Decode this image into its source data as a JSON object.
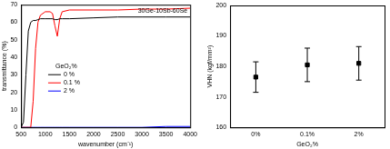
{
  "chart_data": [
    {
      "type": "line",
      "title": "30Ge-10Sb-60Se",
      "x_label": "wavenumber (cm⁻¹)",
      "y_label": "transmittance (%)",
      "legend_title": "GeO₂%",
      "legend": "left",
      "x": [
        500,
        550,
        600,
        650,
        700,
        750,
        800,
        850,
        900,
        1000,
        1100,
        1150,
        1200,
        1250,
        1300,
        1350,
        1500,
        2000,
        2500,
        3000,
        3500,
        4000
      ],
      "series": [
        {
          "name": "0 %",
          "color": "#000000",
          "values": [
            0,
            3,
            30,
            55,
            60,
            61,
            61,
            61.5,
            62,
            62,
            62,
            62,
            61.5,
            61.5,
            62,
            62,
            62,
            62.5,
            63,
            63,
            63,
            63
          ]
        },
        {
          "name": "0.1 %",
          "color": "#ff0000",
          "values": [
            0,
            0,
            0,
            0,
            0,
            15,
            45,
            60,
            64,
            66,
            66,
            65,
            58,
            52,
            62,
            66,
            67,
            67,
            67,
            67.5,
            67.5,
            68
          ]
        },
        {
          "name": "2 %",
          "color": "#0000ff",
          "values": [
            0,
            0,
            0,
            0,
            0,
            0,
            0,
            0,
            0,
            0,
            0,
            0,
            0,
            0,
            0,
            0,
            0,
            0,
            0,
            0,
            0.5,
            0.5
          ]
        }
      ],
      "xlim": [
        500,
        4000
      ],
      "xticks": [
        500,
        1000,
        1500,
        2000,
        2500,
        3000,
        3500,
        4000
      ],
      "ylim": [
        0,
        70
      ],
      "yticks": [
        0,
        10,
        20,
        30,
        40,
        50,
        60,
        70
      ],
      "grid": false
    },
    {
      "type": "scatter",
      "x_label": "GeO₂%",
      "y_label": "VHN (kgf/mm²)",
      "categories": [
        "0%",
        "0.1%",
        "2%"
      ],
      "values": [
        176.5,
        180.5,
        181
      ],
      "errors": [
        5,
        5.5,
        5.5
      ],
      "color": "#000000",
      "marker": "square",
      "ylim": [
        160,
        200
      ],
      "yticks": [
        160,
        170,
        180,
        190,
        200
      ],
      "grid": false
    }
  ]
}
